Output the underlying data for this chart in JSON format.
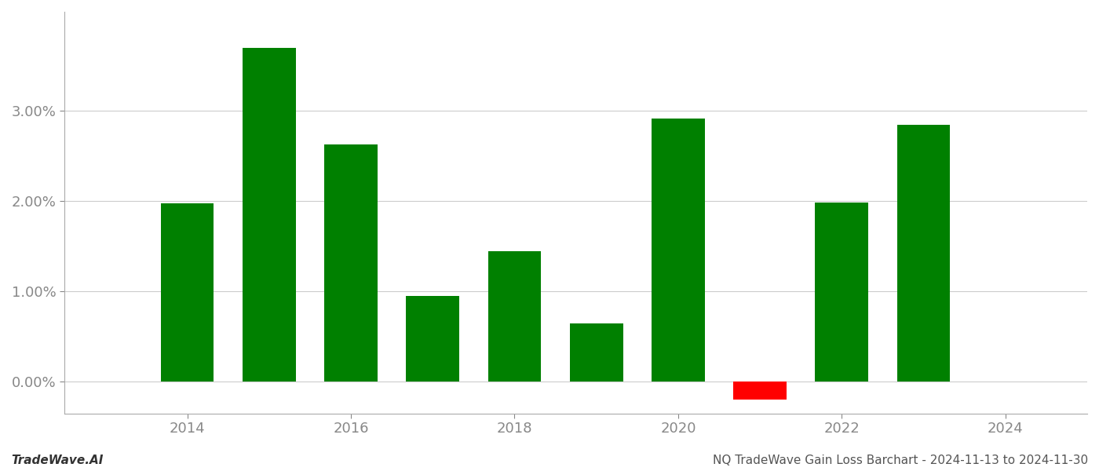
{
  "years": [
    2014,
    2015,
    2016,
    2017,
    2018,
    2019,
    2020,
    2021,
    2022,
    2023
  ],
  "values": [
    1.98,
    3.7,
    2.63,
    0.95,
    1.45,
    0.65,
    2.92,
    -0.2,
    1.99,
    2.85
  ],
  "bar_color_positive": "#008000",
  "bar_color_negative": "#ff0000",
  "background_color": "#ffffff",
  "grid_color": "#cccccc",
  "footer_left": "TradeWave.AI",
  "footer_right": "NQ TradeWave Gain Loss Barchart - 2024-11-13 to 2024-11-30",
  "yticks": [
    0.0,
    1.0,
    2.0,
    3.0
  ],
  "xticks": [
    2014,
    2016,
    2018,
    2020,
    2022,
    2024
  ],
  "xlim_min": 2012.5,
  "xlim_max": 2025.0,
  "ylim_min": -0.35,
  "ylim_max": 4.1,
  "bar_width": 0.65,
  "tick_fontsize": 13,
  "footer_fontsize": 11
}
